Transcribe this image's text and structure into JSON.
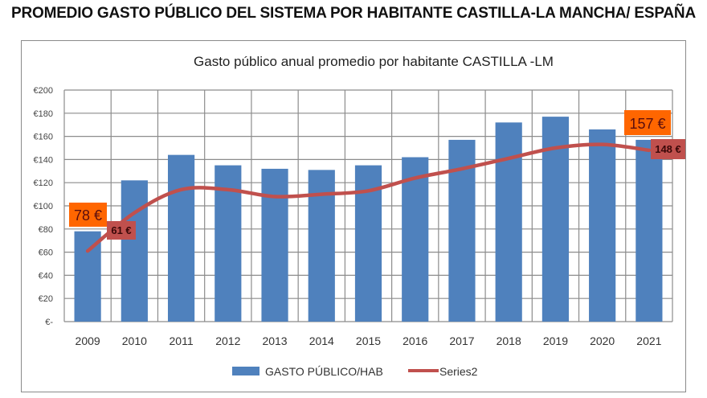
{
  "page_title": "PROMEDIO GASTO PÚBLICO DEL SISTEMA POR HABITANTE CASTILLA-LA MANCHA/ ESPAÑA",
  "colors": {
    "bar": "#4f81bd",
    "line": "#c0504d",
    "label_bar_bg": "#ff6600",
    "label_line_bg": "#c0504d",
    "grid": "#8c8c8c"
  },
  "chart_data": {
    "type": "bar",
    "title": "Gasto público anual promedio por habitante CASTILLA -LM",
    "xlabel": "",
    "ylabel": "",
    "categories": [
      "2009",
      "2010",
      "2011",
      "2012",
      "2013",
      "2014",
      "2015",
      "2016",
      "2017",
      "2018",
      "2019",
      "2020",
      "2021"
    ],
    "series": [
      {
        "name": "GASTO PÚBLICO/HAB",
        "type": "bar",
        "values": [
          78,
          122,
          144,
          135,
          132,
          131,
          135,
          142,
          157,
          172,
          177,
          166,
          157
        ]
      },
      {
        "name": "Series2",
        "type": "line",
        "values": [
          61,
          94,
          114,
          114,
          108,
          110,
          113,
          124,
          132,
          141,
          150,
          153,
          148
        ]
      }
    ],
    "ylim": [
      0,
      200
    ],
    "yticks": [
      0,
      20,
      40,
      60,
      80,
      100,
      120,
      140,
      160,
      180,
      200
    ],
    "ytick_labels": [
      "€-",
      "€20",
      "€40",
      "€60",
      "€80",
      "€100",
      "€120",
      "€140",
      "€160",
      "€180",
      "€200"
    ],
    "grid": true,
    "legend": "bottom",
    "annotations": [
      {
        "text": "78 €",
        "series": "GASTO PÚBLICO/HAB",
        "category": "2009"
      },
      {
        "text": "61 €",
        "series": "Series2",
        "category": "2009"
      },
      {
        "text": "157 €",
        "series": "GASTO PÚBLICO/HAB",
        "category": "2021"
      },
      {
        "text": "148 €",
        "series": "Series2",
        "category": "2021"
      }
    ]
  }
}
